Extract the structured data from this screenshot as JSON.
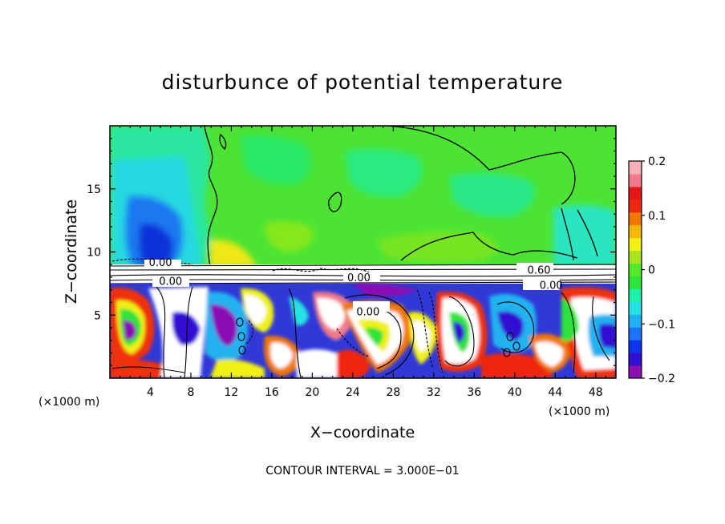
{
  "chart_data": {
    "type": "heatmap",
    "title": "disturbunce of potential temperature",
    "xlabel": "X−coordinate",
    "ylabel": "Z−coordinate",
    "x_unit_label": "(×1000 m)",
    "z_unit_label": "(×1000 m)",
    "footer": "CONTOUR INTERVAL = 3.000E−01",
    "xlim": [
      0,
      50
    ],
    "zlim": [
      0,
      20
    ],
    "x_ticks": [
      4,
      8,
      12,
      16,
      20,
      24,
      28,
      32,
      36,
      40,
      44,
      48
    ],
    "z_ticks": [
      5,
      10,
      15
    ],
    "colorbar": {
      "range": [
        -0.2,
        0.2
      ],
      "ticks": [
        {
          "value": 0.2,
          "label": "0.2"
        },
        {
          "value": 0.1,
          "label": "0.1"
        },
        {
          "value": 0,
          "label": "0"
        },
        {
          "value": -0.1,
          "label": "−0.1"
        },
        {
          "value": -0.2,
          "label": "−0.2"
        }
      ],
      "colors": [
        "#8a10b4",
        "#3010d2",
        "#0d34f0",
        "#1a74f5",
        "#20b2f0",
        "#25e2e2",
        "#1bf0a8",
        "#2ee33a",
        "#55e82a",
        "#a8e51e",
        "#f0f012",
        "#f5b800",
        "#f07800",
        "#ef2810",
        "#e41818",
        "#f07a8a",
        "#f6b0b8"
      ]
    },
    "contour_labels": [
      {
        "x": 5.0,
        "z": 9.2,
        "text": "0.00"
      },
      {
        "x": 6.0,
        "z": 7.7,
        "text": "0.00"
      },
      {
        "x": 24.6,
        "z": 8.0,
        "text": "0.00"
      },
      {
        "x": 25.5,
        "z": 5.3,
        "text": "0.00"
      },
      {
        "x": 42.4,
        "z": 8.6,
        "text": "0.60"
      },
      {
        "x": 43.6,
        "z": 7.4,
        "text": "0.00"
      }
    ]
  }
}
